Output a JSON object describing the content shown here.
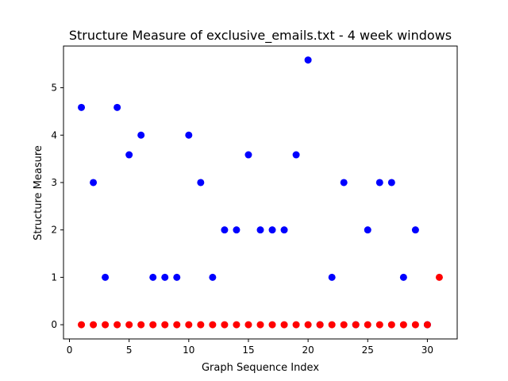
{
  "chart_data": {
    "type": "scatter",
    "title": "Structure Measure of exclusive_emails.txt - 4 week windows",
    "xlabel": "Graph Sequence Index",
    "ylabel": "Structure Measure",
    "xlim": [
      -0.5,
      32.5
    ],
    "ylim": [
      -0.3,
      5.88
    ],
    "xticks": [
      0,
      5,
      10,
      15,
      20,
      25,
      30
    ],
    "yticks": [
      0,
      1,
      2,
      3,
      4,
      5
    ],
    "grid": false,
    "legend": "none",
    "series": [
      {
        "color": "#0000ff",
        "points": [
          [
            1,
            4.585
          ],
          [
            2,
            3
          ],
          [
            3,
            1
          ],
          [
            4,
            4.585
          ],
          [
            5,
            3.585
          ],
          [
            6,
            4
          ],
          [
            7,
            1
          ],
          [
            8,
            1
          ],
          [
            9,
            1
          ],
          [
            10,
            4
          ],
          [
            11,
            3
          ],
          [
            12,
            1
          ],
          [
            13,
            2
          ],
          [
            14,
            2
          ],
          [
            15,
            3.585
          ],
          [
            16,
            2
          ],
          [
            17,
            2
          ],
          [
            18,
            2
          ],
          [
            19,
            3.585
          ],
          [
            20,
            5.585
          ],
          [
            21,
            0
          ],
          [
            22,
            1
          ],
          [
            23,
            3
          ],
          [
            24,
            0
          ],
          [
            25,
            2
          ],
          [
            26,
            3
          ],
          [
            27,
            3
          ],
          [
            28,
            1
          ],
          [
            29,
            2
          ],
          [
            30,
            0
          ]
        ]
      },
      {
        "color": "#ff0000",
        "points": [
          [
            1,
            0
          ],
          [
            2,
            0
          ],
          [
            3,
            0
          ],
          [
            4,
            0
          ],
          [
            5,
            0
          ],
          [
            6,
            0
          ],
          [
            7,
            0
          ],
          [
            8,
            0
          ],
          [
            9,
            0
          ],
          [
            10,
            0
          ],
          [
            11,
            0
          ],
          [
            12,
            0
          ],
          [
            13,
            0
          ],
          [
            14,
            0
          ],
          [
            15,
            0
          ],
          [
            16,
            0
          ],
          [
            17,
            0
          ],
          [
            18,
            0
          ],
          [
            19,
            0
          ],
          [
            20,
            0
          ],
          [
            21,
            0
          ],
          [
            22,
            0
          ],
          [
            23,
            0
          ],
          [
            24,
            0
          ],
          [
            25,
            0
          ],
          [
            26,
            0
          ],
          [
            27,
            0
          ],
          [
            28,
            0
          ],
          [
            29,
            0
          ],
          [
            30,
            0
          ],
          [
            31,
            1
          ]
        ]
      }
    ]
  }
}
